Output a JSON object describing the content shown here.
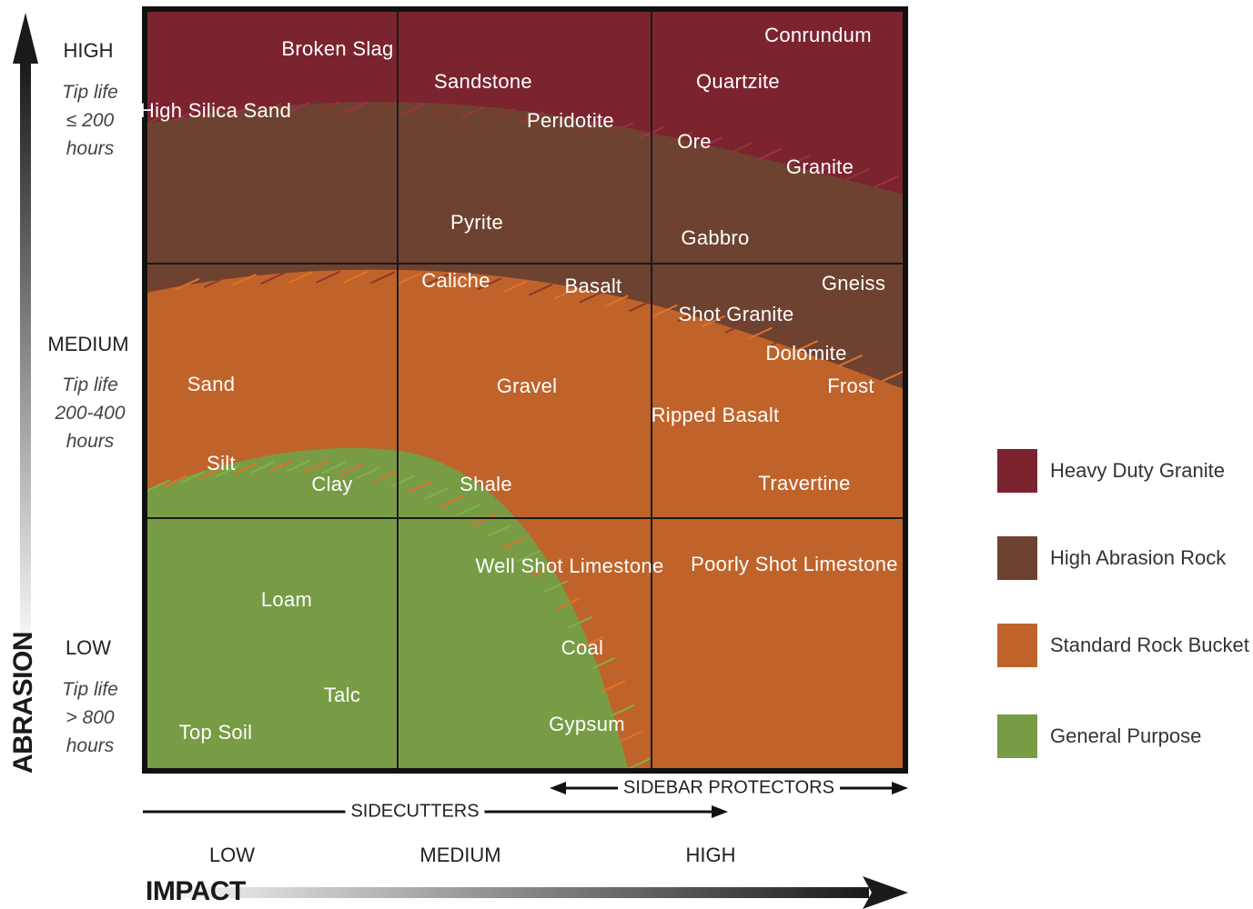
{
  "axes": {
    "y_title": "ABRASION",
    "x_title": "IMPACT",
    "y_levels": [
      {
        "label": "HIGH",
        "tip": "Tip life\n≤ 200\nhours"
      },
      {
        "label": "MEDIUM",
        "tip": "Tip life\n200-400\nhours"
      },
      {
        "label": "LOW",
        "tip": "Tip life\n> 800\nhours"
      }
    ],
    "x_levels": [
      "LOW",
      "MEDIUM",
      "HIGH"
    ]
  },
  "ranges": {
    "sidecutters": "SIDECUTTERS",
    "sidebar_protectors": "SIDEBAR PROTECTORS"
  },
  "colors": {
    "heavy_duty_granite": "#7b2430",
    "high_abrasion_rock": "#6e4230",
    "standard_rock_bucket": "#c0632a",
    "general_purpose": "#789c45"
  },
  "legend": [
    {
      "label": "Heavy Duty Granite",
      "color": "#7b2430"
    },
    {
      "label": "High Abrasion Rock",
      "color": "#6e4230"
    },
    {
      "label": "Standard Rock Bucket",
      "color": "#c0632a"
    },
    {
      "label": "General Purpose",
      "color": "#789c45"
    }
  ],
  "materials": [
    {
      "name": "Broken\nSlag"
    },
    {
      "name": "High Silica\nSand"
    },
    {
      "name": "Sandstone"
    },
    {
      "name": "Peridotite"
    },
    {
      "name": "Pyrite"
    },
    {
      "name": "Conrundum"
    },
    {
      "name": "Quartzite"
    },
    {
      "name": "Ore"
    },
    {
      "name": "Granite"
    },
    {
      "name": "Gabbro"
    },
    {
      "name": "Caliche"
    },
    {
      "name": "Basalt"
    },
    {
      "name": "Gneiss"
    },
    {
      "name": "Shot Granite"
    },
    {
      "name": "Dolomite"
    },
    {
      "name": "Frost"
    },
    {
      "name": "Sand"
    },
    {
      "name": "Gravel"
    },
    {
      "name": "Ripped\nBasalt"
    },
    {
      "name": "Silt"
    },
    {
      "name": "Clay"
    },
    {
      "name": "Shale"
    },
    {
      "name": "Travertine"
    },
    {
      "name": "Well Shot\nLimestone"
    },
    {
      "name": "Poorly Shot\nLimestone"
    },
    {
      "name": "Loam"
    },
    {
      "name": "Coal"
    },
    {
      "name": "Talc"
    },
    {
      "name": "Top Soil"
    },
    {
      "name": "Gypsum"
    }
  ]
}
